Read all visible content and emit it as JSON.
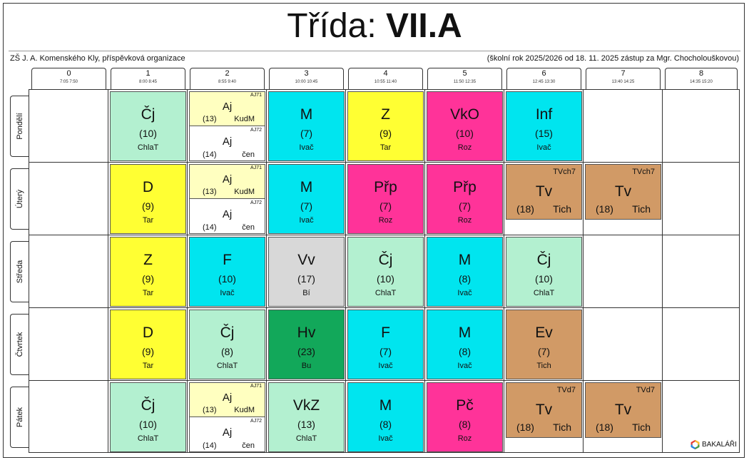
{
  "title": {
    "prefix": "Třída:",
    "class_name": "VII.A"
  },
  "school": "ZŠ J. A. Komenského Kly, příspěvková organizace",
  "info": "(školní rok 2025/2026 od 18. 11. 2025 zástup za Mgr. Chocholouškovou)",
  "periods": [
    {
      "num": "0",
      "time": "7:05  7:50"
    },
    {
      "num": "1",
      "time": "8:00  8:45"
    },
    {
      "num": "2",
      "time": "8:55  9:40"
    },
    {
      "num": "3",
      "time": "10:00 10:45"
    },
    {
      "num": "4",
      "time": "10:55 11:40"
    },
    {
      "num": "5",
      "time": "11:50 12:35"
    },
    {
      "num": "6",
      "time": "12:45 13:30"
    },
    {
      "num": "7",
      "time": "13:40 14:25"
    },
    {
      "num": "8",
      "time": "14:35 15:20"
    }
  ],
  "days": [
    "Pondělí",
    "Úterý",
    "Středa",
    "Čtvrtek",
    "Pátek"
  ],
  "colors": {
    "cj": "#b3f0d0",
    "aj": "#ffffc0",
    "cyan": "#00e5ef",
    "yellow": "#ffff33",
    "pink": "#ff3399",
    "brown": "#d19a66",
    "grey": "#d8d8d8",
    "green": "#12a85a"
  },
  "lessons": [
    {
      "day": 0,
      "period": 1,
      "kind": "full",
      "subject": "Čj",
      "room": "(10)",
      "teacher": "ChlaT",
      "color": "cj"
    },
    {
      "day": 0,
      "period": 2,
      "kind": "split",
      "groups": [
        {
          "group": "AJ71",
          "subject": "Aj",
          "room": "(13)",
          "teacher": "KudM",
          "color": "aj"
        },
        {
          "group": "AJ72",
          "subject": "Aj",
          "room": "(14)",
          "teacher": "čen",
          "color": "white"
        }
      ]
    },
    {
      "day": 0,
      "period": 3,
      "kind": "full",
      "subject": "M",
      "room": "(7)",
      "teacher": "Ivač",
      "color": "cyan"
    },
    {
      "day": 0,
      "period": 4,
      "kind": "full",
      "subject": "Z",
      "room": "(9)",
      "teacher": "Tar",
      "color": "yellow"
    },
    {
      "day": 0,
      "period": 5,
      "kind": "full",
      "subject": "VkO",
      "room": "(10)",
      "teacher": "Roz",
      "color": "pink"
    },
    {
      "day": 0,
      "period": 6,
      "kind": "full",
      "subject": "Inf",
      "room": "(15)",
      "teacher": "Ivač",
      "color": "cyan"
    },
    {
      "day": 1,
      "period": 1,
      "kind": "full",
      "subject": "D",
      "room": "(9)",
      "teacher": "Tar",
      "color": "yellow"
    },
    {
      "day": 1,
      "period": 2,
      "kind": "split",
      "groups": [
        {
          "group": "AJ71",
          "subject": "Aj",
          "room": "(13)",
          "teacher": "KudM",
          "color": "aj"
        },
        {
          "group": "AJ72",
          "subject": "Aj",
          "room": "(14)",
          "teacher": "čen",
          "color": "white"
        }
      ]
    },
    {
      "day": 1,
      "period": 3,
      "kind": "full",
      "subject": "M",
      "room": "(7)",
      "teacher": "Ivač",
      "color": "cyan"
    },
    {
      "day": 1,
      "period": 4,
      "kind": "full",
      "subject": "Přp",
      "room": "(7)",
      "teacher": "Roz",
      "color": "pink"
    },
    {
      "day": 1,
      "period": 5,
      "kind": "full",
      "subject": "Přp",
      "room": "(7)",
      "teacher": "Roz",
      "color": "pink"
    },
    {
      "day": 1,
      "period": 6,
      "kind": "tv",
      "group": "TVch7",
      "subject": "Tv",
      "room": "(18)",
      "teacher": "Tich",
      "color": "brown"
    },
    {
      "day": 1,
      "period": 7,
      "kind": "tv",
      "group": "TVch7",
      "subject": "Tv",
      "room": "(18)",
      "teacher": "Tich",
      "color": "brown"
    },
    {
      "day": 2,
      "period": 1,
      "kind": "full",
      "subject": "Z",
      "room": "(9)",
      "teacher": "Tar",
      "color": "yellow"
    },
    {
      "day": 2,
      "period": 2,
      "kind": "full",
      "subject": "F",
      "room": "(10)",
      "teacher": "Ivač",
      "color": "cyan"
    },
    {
      "day": 2,
      "period": 3,
      "kind": "full",
      "subject": "Vv",
      "room": "(17)",
      "teacher": "Bí",
      "color": "grey"
    },
    {
      "day": 2,
      "period": 4,
      "kind": "full",
      "subject": "Čj",
      "room": "(10)",
      "teacher": "ChlaT",
      "color": "cj"
    },
    {
      "day": 2,
      "period": 5,
      "kind": "full",
      "subject": "M",
      "room": "(8)",
      "teacher": "Ivač",
      "color": "cyan"
    },
    {
      "day": 2,
      "period": 6,
      "kind": "full",
      "subject": "Čj",
      "room": "(10)",
      "teacher": "ChlaT",
      "color": "cj"
    },
    {
      "day": 3,
      "period": 1,
      "kind": "full",
      "subject": "D",
      "room": "(9)",
      "teacher": "Tar",
      "color": "yellow"
    },
    {
      "day": 3,
      "period": 2,
      "kind": "full",
      "subject": "Čj",
      "room": "(8)",
      "teacher": "ChlaT",
      "color": "cj"
    },
    {
      "day": 3,
      "period": 3,
      "kind": "full",
      "subject": "Hv",
      "room": "(23)",
      "teacher": "Bu",
      "color": "green"
    },
    {
      "day": 3,
      "period": 4,
      "kind": "full",
      "subject": "F",
      "room": "(7)",
      "teacher": "Ivač",
      "color": "cyan"
    },
    {
      "day": 3,
      "period": 5,
      "kind": "full",
      "subject": "M",
      "room": "(8)",
      "teacher": "Ivač",
      "color": "cyan"
    },
    {
      "day": 3,
      "period": 6,
      "kind": "full",
      "subject": "Ev",
      "room": "(7)",
      "teacher": "Tich",
      "color": "brown"
    },
    {
      "day": 4,
      "period": 1,
      "kind": "full",
      "subject": "Čj",
      "room": "(10)",
      "teacher": "ChlaT",
      "color": "cj"
    },
    {
      "day": 4,
      "period": 2,
      "kind": "split",
      "groups": [
        {
          "group": "AJ71",
          "subject": "Aj",
          "room": "(13)",
          "teacher": "KudM",
          "color": "aj"
        },
        {
          "group": "AJ72",
          "subject": "Aj",
          "room": "(14)",
          "teacher": "čen",
          "color": "white"
        }
      ]
    },
    {
      "day": 4,
      "period": 3,
      "kind": "full",
      "subject": "VkZ",
      "room": "(13)",
      "teacher": "ChlaT",
      "color": "cj"
    },
    {
      "day": 4,
      "period": 4,
      "kind": "full",
      "subject": "M",
      "room": "(8)",
      "teacher": "Ivač",
      "color": "cyan"
    },
    {
      "day": 4,
      "period": 5,
      "kind": "full",
      "subject": "Pč",
      "room": "(8)",
      "teacher": "Roz",
      "color": "pink"
    },
    {
      "day": 4,
      "period": 6,
      "kind": "tv",
      "group": "TVd7",
      "subject": "Tv",
      "room": "(18)",
      "teacher": "Tich",
      "color": "brown"
    },
    {
      "day": 4,
      "period": 7,
      "kind": "tv",
      "group": "TVd7",
      "subject": "Tv",
      "room": "(18)",
      "teacher": "Tich",
      "color": "brown"
    }
  ],
  "logo": {
    "text": "BAKALÁŘI",
    "icon": "bakalari-logo-icon"
  }
}
